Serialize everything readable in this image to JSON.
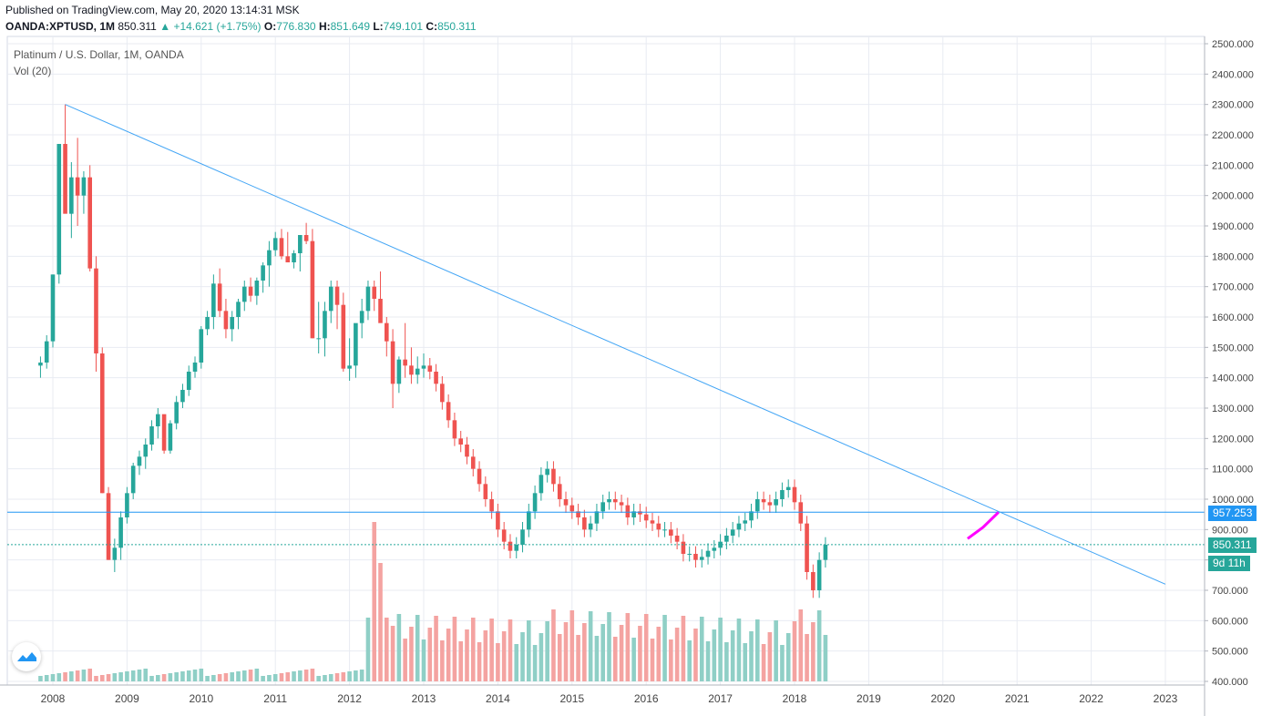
{
  "header": {
    "published": "Published on TradingView.com, May 20, 2020 13:14:31 MSK",
    "symbol": "OANDA:XPTUSD, 1M",
    "last": "850.311",
    "change": "+14.621 (+1.75%)",
    "o_label": "O:",
    "o": "776.830",
    "h_label": "H:",
    "h": "851.649",
    "l_label": "L:",
    "l": "749.101",
    "c_label": "C:",
    "c": "850.311"
  },
  "legend": {
    "title": "Platinum / U.S. Dollar, 1M, OANDA",
    "volume": "Vol (20)"
  },
  "tags": {
    "level": "957.253",
    "price": "850.311",
    "countdown": "9d 11h"
  },
  "colors": {
    "up": "#26a69a",
    "down": "#ef5350",
    "trendline": "#42a5f5",
    "hline": "#2196f3",
    "projection": "#ff00ff",
    "grid": "#e8ebf2"
  },
  "icons": {
    "logo": "tradingview-logo-icon",
    "up_arrow": "triangle-up-icon"
  },
  "chart_data": {
    "type": "candlestick",
    "title": "Platinum / U.S. Dollar, 1M, OANDA",
    "y_ticks": [
      "2500.000",
      "2400.000",
      "2300.000",
      "2200.000",
      "2100.000",
      "2000.000",
      "1900.000",
      "1800.000",
      "1700.000",
      "1600.000",
      "1500.000",
      "1400.000",
      "1300.000",
      "1200.000",
      "1100.000",
      "1000.000",
      "900.000",
      "800.000",
      "700.000",
      "600.000",
      "500.000",
      "400.000"
    ],
    "x_ticks": [
      "2008",
      "2009",
      "2010",
      "2011",
      "2012",
      "2013",
      "2014",
      "2015",
      "2016",
      "2017",
      "2018",
      "2019",
      "2020",
      "2021",
      "2022",
      "2023"
    ],
    "ylim": [
      400,
      2500
    ],
    "volume_indicator": "Vol (20)",
    "candle_ohlc_monthly_from_2007_11": [
      [
        1440,
        1470,
        1400,
        1450
      ],
      [
        1450,
        1540,
        1430,
        1520
      ],
      [
        1520,
        1740,
        1500,
        1740
      ],
      [
        1740,
        2170,
        1710,
        2170
      ],
      [
        2170,
        2300,
        1990,
        1940
      ],
      [
        1940,
        2110,
        1860,
        2060
      ],
      [
        2060,
        2190,
        1900,
        2000
      ],
      [
        2000,
        2080,
        1940,
        2060
      ],
      [
        2060,
        2100,
        1750,
        1760
      ],
      [
        1760,
        1800,
        1420,
        1480
      ],
      [
        1480,
        1500,
        1020,
        1020
      ],
      [
        1020,
        1040,
        800,
        800
      ],
      [
        800,
        870,
        760,
        840
      ],
      [
        840,
        960,
        800,
        940
      ],
      [
        940,
        1040,
        920,
        1020
      ],
      [
        1020,
        1120,
        1000,
        1110
      ],
      [
        1110,
        1160,
        1080,
        1140
      ],
      [
        1140,
        1200,
        1100,
        1180
      ],
      [
        1180,
        1260,
        1160,
        1240
      ],
      [
        1240,
        1300,
        1200,
        1280
      ],
      [
        1280,
        1260,
        1150,
        1160
      ],
      [
        1160,
        1260,
        1150,
        1250
      ],
      [
        1250,
        1340,
        1230,
        1320
      ],
      [
        1320,
        1380,
        1300,
        1360
      ],
      [
        1360,
        1440,
        1340,
        1420
      ],
      [
        1420,
        1470,
        1400,
        1450
      ],
      [
        1450,
        1570,
        1430,
        1560
      ],
      [
        1560,
        1620,
        1540,
        1600
      ],
      [
        1600,
        1740,
        1560,
        1710
      ],
      [
        1710,
        1760,
        1600,
        1620
      ],
      [
        1620,
        1660,
        1530,
        1560
      ],
      [
        1560,
        1620,
        1520,
        1600
      ],
      [
        1600,
        1660,
        1560,
        1650
      ],
      [
        1650,
        1720,
        1620,
        1700
      ],
      [
        1700,
        1730,
        1650,
        1670
      ],
      [
        1670,
        1730,
        1640,
        1720
      ],
      [
        1720,
        1780,
        1680,
        1770
      ],
      [
        1770,
        1850,
        1700,
        1820
      ],
      [
        1820,
        1880,
        1800,
        1860
      ],
      [
        1860,
        1890,
        1790,
        1800
      ],
      [
        1800,
        1880,
        1790,
        1780
      ],
      [
        1780,
        1820,
        1760,
        1810
      ],
      [
        1810,
        1870,
        1750,
        1870
      ],
      [
        1870,
        1910,
        1840,
        1850
      ],
      [
        1850,
        1890,
        1530,
        1530
      ],
      [
        1530,
        1650,
        1480,
        1530
      ],
      [
        1530,
        1650,
        1470,
        1620
      ],
      [
        1620,
        1720,
        1580,
        1700
      ],
      [
        1700,
        1720,
        1560,
        1640
      ],
      [
        1640,
        1680,
        1420,
        1430
      ],
      [
        1430,
        1530,
        1390,
        1440
      ],
      [
        1440,
        1560,
        1400,
        1580
      ],
      [
        1580,
        1660,
        1530,
        1620
      ],
      [
        1620,
        1720,
        1590,
        1700
      ],
      [
        1700,
        1720,
        1620,
        1660
      ],
      [
        1660,
        1750,
        1600,
        1580
      ],
      [
        1580,
        1600,
        1470,
        1520
      ],
      [
        1520,
        1560,
        1300,
        1380
      ],
      [
        1380,
        1470,
        1350,
        1460
      ],
      [
        1460,
        1580,
        1400,
        1440
      ],
      [
        1440,
        1500,
        1380,
        1410
      ],
      [
        1410,
        1470,
        1380,
        1430
      ],
      [
        1430,
        1480,
        1400,
        1440
      ]
    ],
    "trendline": {
      "from": [
        "2008-03",
        2300
      ],
      "to": [
        "2023-01",
        720
      ]
    },
    "horizontal_level": 957.253,
    "projection": {
      "from": [
        "2020-05",
        870
      ],
      "to": [
        "2020-10",
        957
      ]
    }
  }
}
